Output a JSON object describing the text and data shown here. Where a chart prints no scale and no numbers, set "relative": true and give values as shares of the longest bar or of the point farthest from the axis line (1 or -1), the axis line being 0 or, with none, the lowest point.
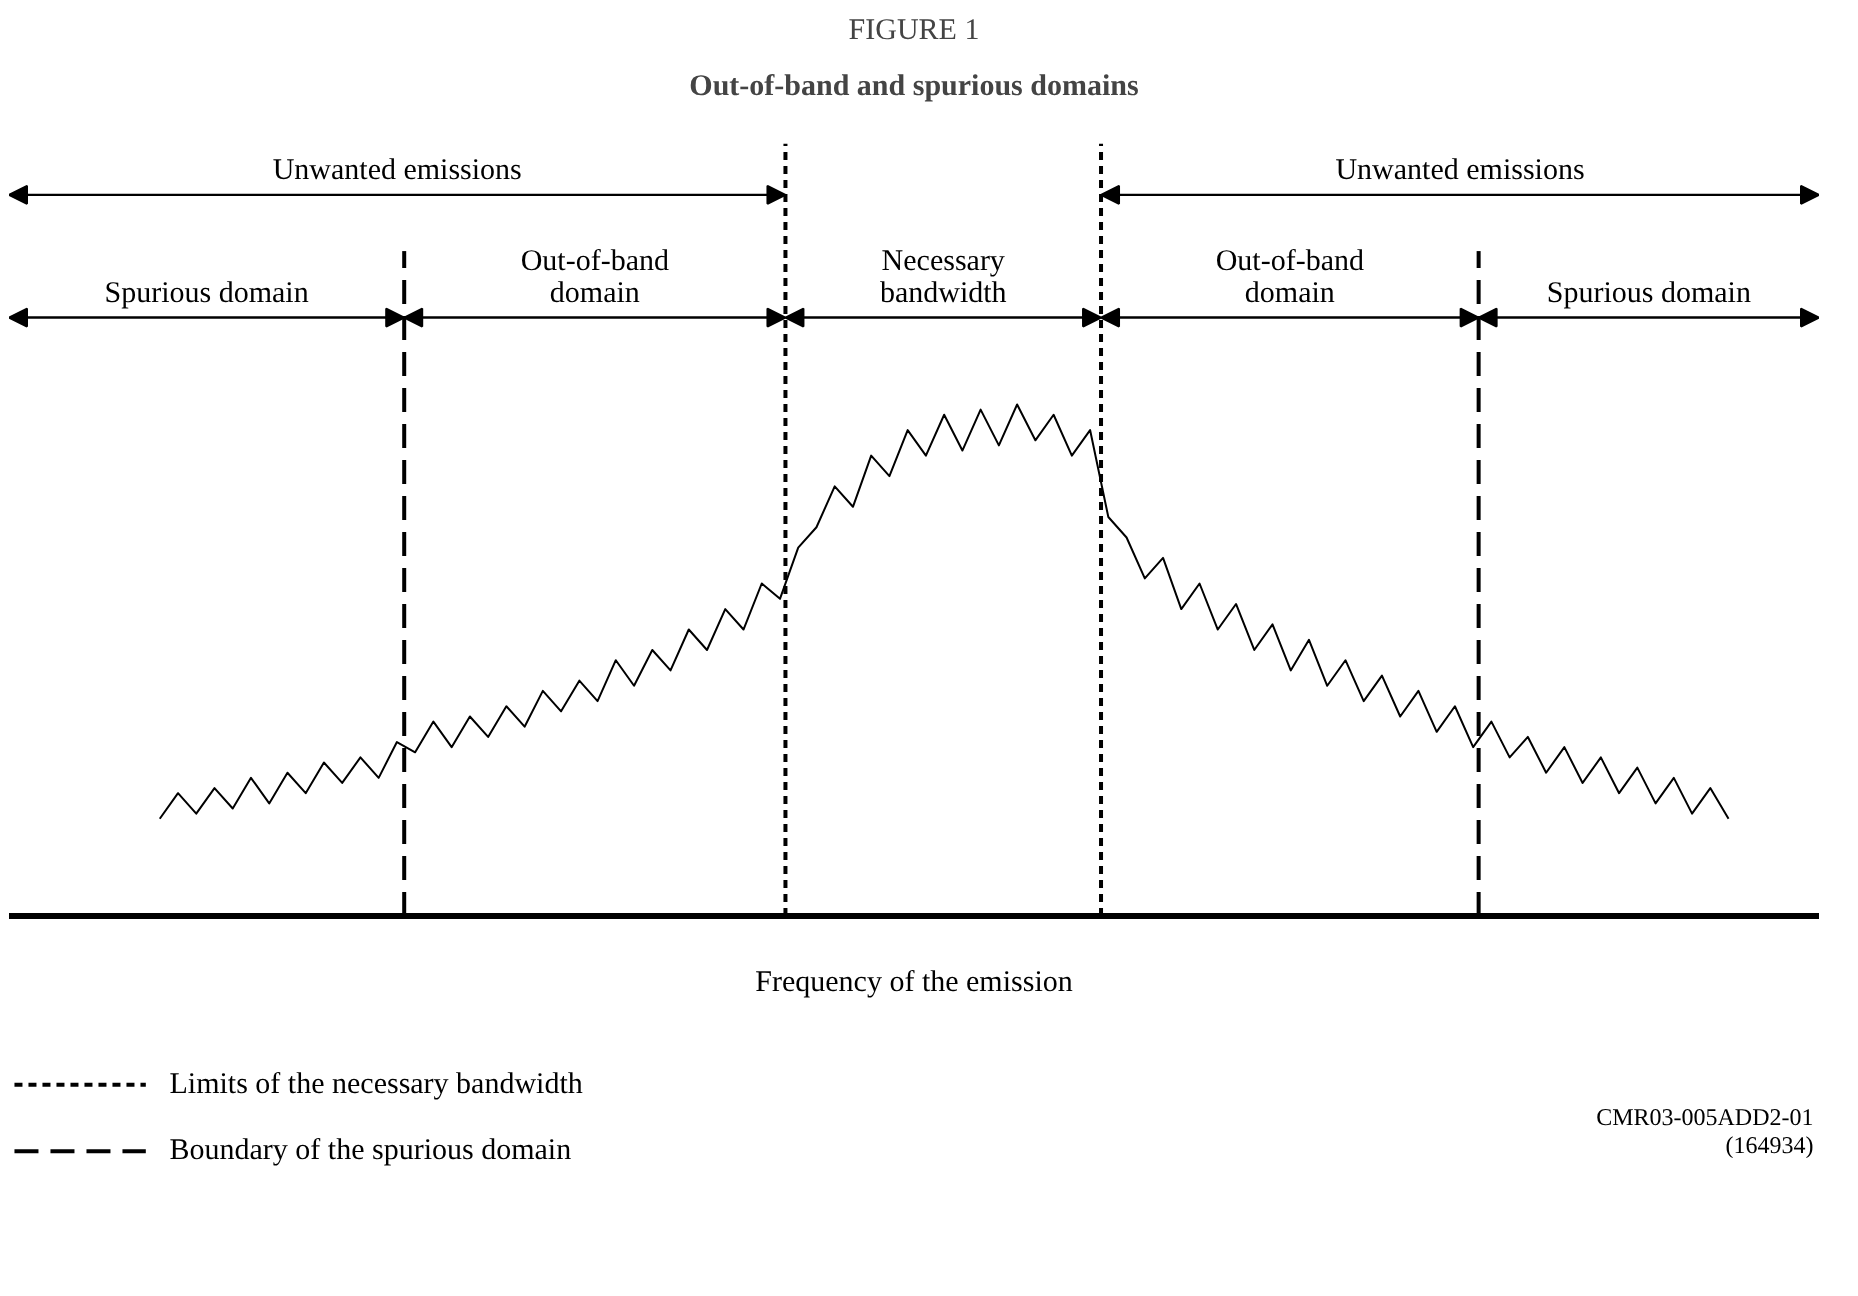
{
  "chart_data": {
    "type": "line",
    "title": "FIGURE 1",
    "subtitle": "Out-of-band and spurious domains",
    "xlabel": "Frequency of the emission",
    "relative": true,
    "tick_labels": false,
    "categories": [
      null,
      null,
      null,
      null,
      null,
      null,
      null,
      null,
      null,
      null,
      null,
      null,
      null,
      null,
      null,
      null,
      null,
      null,
      null,
      null,
      null,
      null,
      null,
      null,
      null,
      null,
      null,
      null,
      null,
      null,
      null,
      null,
      null,
      null,
      null,
      null,
      null,
      null,
      null,
      null,
      null,
      null,
      null,
      null,
      null,
      null,
      null,
      null,
      null,
      null,
      null,
      null,
      null,
      null,
      null,
      null,
      null,
      null,
      null,
      null,
      null,
      null,
      null,
      null,
      null,
      null,
      null,
      null,
      null,
      null,
      null,
      null,
      null,
      null,
      null,
      null,
      null,
      null,
      null,
      null,
      null,
      null,
      null,
      null,
      null,
      null,
      null
    ],
    "series": [
      {
        "color": "#000000",
        "values": [
          0.19,
          0.24,
          0.2,
          0.25,
          0.21,
          0.27,
          0.22,
          0.28,
          0.24,
          0.3,
          0.26,
          0.31,
          0.27,
          0.34,
          0.32,
          0.38,
          0.33,
          0.39,
          0.35,
          0.41,
          0.37,
          0.44,
          0.4,
          0.46,
          0.42,
          0.5,
          0.45,
          0.52,
          0.48,
          0.56,
          0.52,
          0.6,
          0.56,
          0.65,
          0.62,
          0.72,
          0.76,
          0.84,
          0.8,
          0.9,
          0.86,
          0.95,
          0.9,
          0.98,
          0.91,
          0.99,
          0.92,
          1.0,
          0.93,
          0.98,
          0.9,
          0.95,
          0.78,
          0.74,
          0.66,
          0.7,
          0.6,
          0.65,
          0.56,
          0.61,
          0.52,
          0.57,
          0.48,
          0.54,
          0.45,
          0.5,
          0.42,
          0.47,
          0.39,
          0.44,
          0.36,
          0.41,
          0.33,
          0.38,
          0.31,
          0.35,
          0.28,
          0.33,
          0.26,
          0.31,
          0.24,
          0.29,
          0.22,
          0.27,
          0.2,
          0.25,
          0.19
        ]
      }
    ],
    "annotations": [
      "Unwanted emissions",
      "Unwanted emissions",
      "Spurious domain",
      "Out-of-band\ndomain",
      "Necessary\nbandwidth",
      "Out-of-band\ndomain",
      "Spurious domain",
      "Limits of the necessary bandwidth",
      "Boundary of the spurious domain",
      "CMR03-005ADD2-01\n(164934)"
    ]
  }
}
